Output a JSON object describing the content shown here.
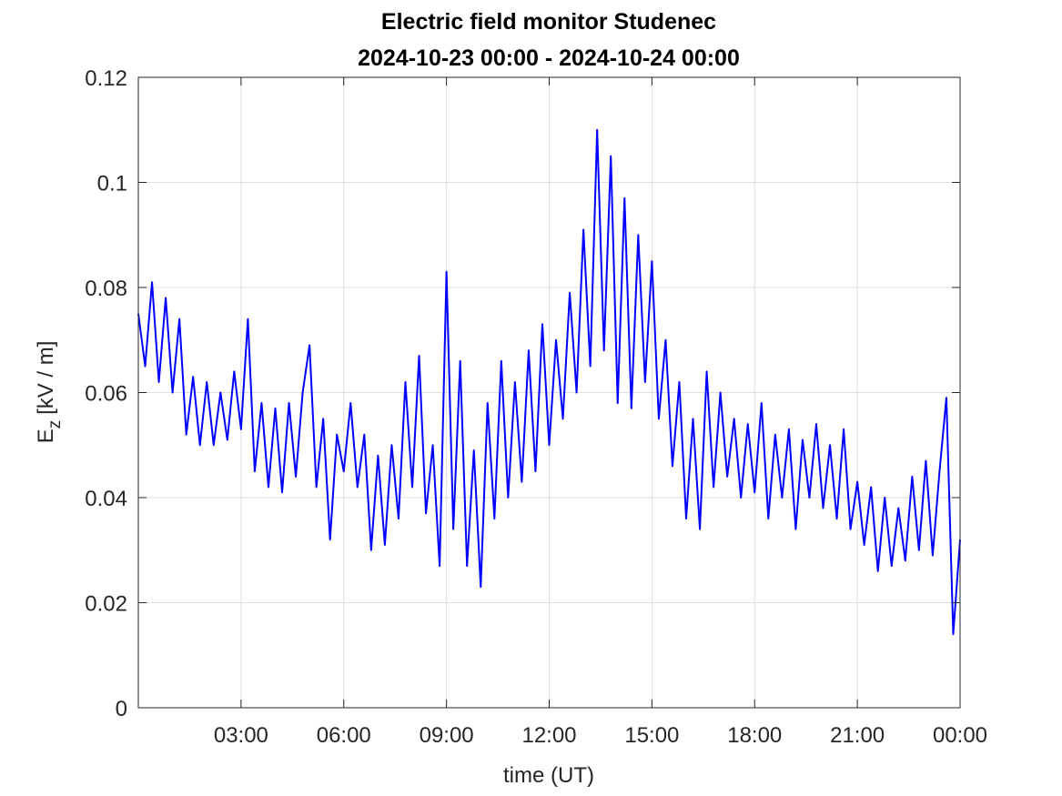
{
  "chart_data": {
    "type": "line",
    "title": [
      "Electric field monitor Studenec",
      "2024-10-23 00:00 - 2024-10-24 00:00"
    ],
    "xlabel": "time (UT)",
    "ylabel": {
      "symbol": "E",
      "subscript": "z",
      "unit": "[kV / m]"
    },
    "xlim": [
      0,
      24
    ],
    "xticks": [
      {
        "value": 3,
        "label": "03:00"
      },
      {
        "value": 6,
        "label": "06:00"
      },
      {
        "value": 9,
        "label": "09:00"
      },
      {
        "value": 12,
        "label": "12:00"
      },
      {
        "value": 15,
        "label": "15:00"
      },
      {
        "value": 18,
        "label": "18:00"
      },
      {
        "value": 21,
        "label": "21:00"
      },
      {
        "value": 24,
        "label": "00:00"
      }
    ],
    "ylim": [
      0,
      0.12
    ],
    "yticks": [
      0,
      0.02,
      0.04,
      0.06,
      0.08,
      0.1,
      0.12
    ],
    "grid": true,
    "x": [
      0,
      0.2,
      0.4,
      0.6,
      0.8,
      1,
      1.2,
      1.4,
      1.6,
      1.8,
      2,
      2.2,
      2.4,
      2.6,
      2.8,
      3,
      3.2,
      3.4,
      3.6,
      3.8,
      4,
      4.2,
      4.4,
      4.6,
      4.8,
      5,
      5.2,
      5.4,
      5.6,
      5.8,
      6,
      6.2,
      6.4,
      6.6,
      6.8,
      7,
      7.2,
      7.4,
      7.6,
      7.8,
      8,
      8.2,
      8.4,
      8.6,
      8.8,
      9,
      9.2,
      9.4,
      9.6,
      9.8,
      10,
      10.2,
      10.4,
      10.6,
      10.8,
      11,
      11.2,
      11.4,
      11.6,
      11.8,
      12,
      12.2,
      12.4,
      12.6,
      12.8,
      13,
      13.2,
      13.4,
      13.6,
      13.8,
      14,
      14.2,
      14.4,
      14.6,
      14.8,
      15,
      15.2,
      15.4,
      15.6,
      15.8,
      16,
      16.2,
      16.4,
      16.6,
      16.8,
      17,
      17.2,
      17.4,
      17.6,
      17.8,
      18,
      18.2,
      18.4,
      18.6,
      18.8,
      19,
      19.2,
      19.4,
      19.6,
      19.8,
      20,
      20.2,
      20.4,
      20.6,
      20.8,
      21,
      21.2,
      21.4,
      21.6,
      21.8,
      22,
      22.2,
      22.4,
      22.6,
      22.8,
      23,
      23.2,
      23.4,
      23.6,
      23.8,
      24
    ],
    "series": [
      {
        "color": "#0000ff",
        "values": [
          0.075,
          0.065,
          0.081,
          0.062,
          0.078,
          0.06,
          0.074,
          0.052,
          0.063,
          0.05,
          0.062,
          0.05,
          0.06,
          0.051,
          0.064,
          0.053,
          0.074,
          0.045,
          0.058,
          0.042,
          0.057,
          0.041,
          0.058,
          0.044,
          0.06,
          0.069,
          0.042,
          0.055,
          0.032,
          0.052,
          0.045,
          0.058,
          0.042,
          0.052,
          0.03,
          0.048,
          0.031,
          0.05,
          0.036,
          0.062,
          0.042,
          0.067,
          0.037,
          0.05,
          0.027,
          0.083,
          0.034,
          0.066,
          0.027,
          0.049,
          0.023,
          0.058,
          0.036,
          0.066,
          0.04,
          0.062,
          0.043,
          0.068,
          0.045,
          0.073,
          0.05,
          0.07,
          0.055,
          0.079,
          0.06,
          0.091,
          0.065,
          0.11,
          0.068,
          0.105,
          0.058,
          0.097,
          0.057,
          0.09,
          0.062,
          0.085,
          0.055,
          0.07,
          0.046,
          0.062,
          0.036,
          0.055,
          0.034,
          0.064,
          0.042,
          0.06,
          0.044,
          0.055,
          0.04,
          0.054,
          0.041,
          0.058,
          0.036,
          0.052,
          0.04,
          0.053,
          0.034,
          0.051,
          0.04,
          0.054,
          0.038,
          0.05,
          0.036,
          0.053,
          0.034,
          0.043,
          0.031,
          0.042,
          0.026,
          0.04,
          0.027,
          0.038,
          0.028,
          0.044,
          0.03,
          0.047,
          0.029,
          0.045,
          0.059,
          0.014,
          0.032
        ]
      }
    ]
  }
}
